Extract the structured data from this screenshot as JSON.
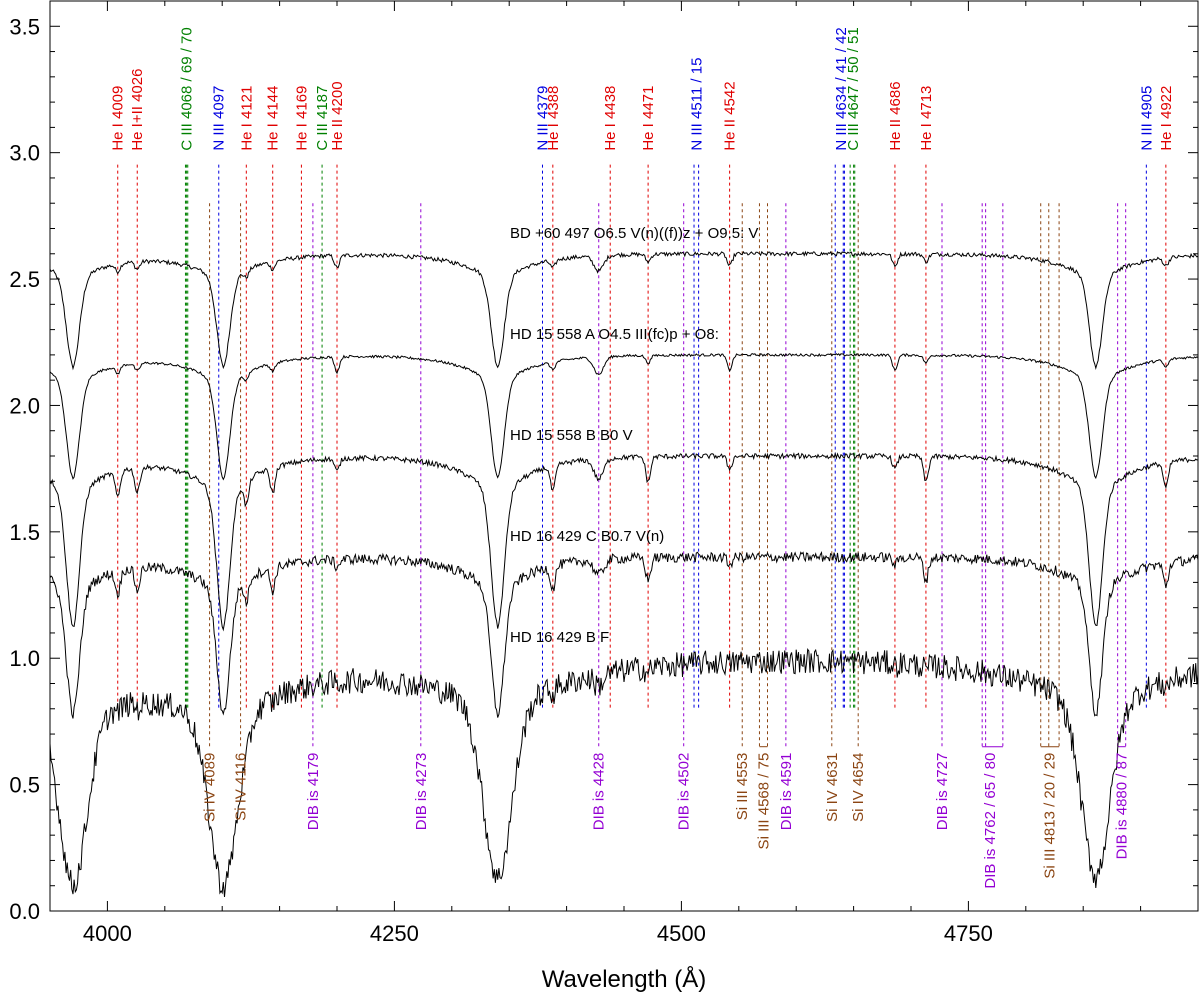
{
  "chart_data": {
    "type": "line",
    "xlabel": "Wavelength (Å)",
    "ylabel": "",
    "xlim": [
      3950,
      4950
    ],
    "ylim": [
      0.0,
      3.6
    ],
    "xticks": [
      4000,
      4250,
      4500,
      4750
    ],
    "yticks": [
      0.0,
      0.5,
      1.0,
      1.5,
      2.0,
      2.5,
      3.0,
      3.5
    ],
    "xtick_labels": [
      "4000",
      "4250",
      "4500",
      "4750"
    ],
    "ytick_labels": [
      "0.0",
      "0.5",
      "1.0",
      "1.5",
      "2.0",
      "2.5",
      "3.0",
      "3.5"
    ],
    "grid": false,
    "series": [
      {
        "name": "BD +60 497   O6.5 V(n)((f))z + O9.5: V",
        "continuum": 2.6,
        "noise": 0.008
      },
      {
        "name": "HD 15 558 A   O4.5 III(fc)p + O8:",
        "continuum": 2.2,
        "noise": 0.005
      },
      {
        "name": "HD 15 558 B   B0 V",
        "continuum": 1.8,
        "noise": 0.01
      },
      {
        "name": "HD 16 429 C   B0.7 V(n)",
        "continuum": 1.4,
        "noise": 0.02
      },
      {
        "name": "HD 16 429 B   F",
        "continuum": 1.0,
        "noise": 0.05
      }
    ],
    "top_lines": [
      {
        "label": "He I 4009",
        "wl": [
          4009
        ],
        "color": "#e00000"
      },
      {
        "label": "He I+II 4026",
        "wl": [
          4026
        ],
        "color": "#e00000"
      },
      {
        "label": "C III 4068 / 69 / 70",
        "wl": [
          4068,
          4069,
          4070
        ],
        "color": "#008000"
      },
      {
        "label": "N III 4097",
        "wl": [
          4097
        ],
        "color": "#0000e0"
      },
      {
        "label": "He I 4121",
        "wl": [
          4121
        ],
        "color": "#e00000"
      },
      {
        "label": "He I 4144",
        "wl": [
          4144
        ],
        "color": "#e00000"
      },
      {
        "label": "He I 4169",
        "wl": [
          4169
        ],
        "color": "#e00000"
      },
      {
        "label": "C III 4187",
        "wl": [
          4187
        ],
        "color": "#008000"
      },
      {
        "label": "He II 4200",
        "wl": [
          4200
        ],
        "color": "#e00000"
      },
      {
        "label": "N III 4379",
        "wl": [
          4379
        ],
        "color": "#0000e0"
      },
      {
        "label": "He I 4388",
        "wl": [
          4388
        ],
        "color": "#e00000"
      },
      {
        "label": "He I 4438",
        "wl": [
          4438
        ],
        "color": "#e00000"
      },
      {
        "label": "He I 4471",
        "wl": [
          4471
        ],
        "color": "#e00000"
      },
      {
        "label": "N III 4511 / 15",
        "wl": [
          4511,
          4515
        ],
        "color": "#0000e0"
      },
      {
        "label": "He II 4542",
        "wl": [
          4542
        ],
        "color": "#e00000"
      },
      {
        "label": "N III 4634 / 41 / 42",
        "wl": [
          4634,
          4641,
          4642
        ],
        "color": "#0000e0"
      },
      {
        "label": "C III 4647 / 50 / 51",
        "wl": [
          4647,
          4650,
          4651
        ],
        "color": "#008000"
      },
      {
        "label": "He II 4686",
        "wl": [
          4686
        ],
        "color": "#e00000"
      },
      {
        "label": "He I 4713",
        "wl": [
          4713
        ],
        "color": "#e00000"
      },
      {
        "label": "N III 4905",
        "wl": [
          4905
        ],
        "color": "#0000e0"
      },
      {
        "label": "He I 4922",
        "wl": [
          4922
        ],
        "color": "#e00000"
      }
    ],
    "bottom_lines": [
      {
        "label": "Si IV 4089",
        "wl": [
          4089
        ],
        "color": "#8b4513"
      },
      {
        "label": "Si IV 4116",
        "wl": [
          4116
        ],
        "color": "#8b4513"
      },
      {
        "label": "DIB is 4179",
        "wl": [
          4179
        ],
        "color": "#9400d3"
      },
      {
        "label": "DIB is 4273",
        "wl": [
          4273
        ],
        "color": "#9400d3"
      },
      {
        "label": "DIB is 4428",
        "wl": [
          4428
        ],
        "color": "#9400d3"
      },
      {
        "label": "DIB is 4502",
        "wl": [
          4502
        ],
        "color": "#9400d3"
      },
      {
        "label": "Si III 4553",
        "wl": [
          4553
        ],
        "color": "#8b4513"
      },
      {
        "label": "Si III 4568 / 75",
        "wl": [
          4568,
          4575
        ],
        "color": "#8b4513"
      },
      {
        "label": "DIB is 4591",
        "wl": [
          4591
        ],
        "color": "#9400d3"
      },
      {
        "label": "Si IV 4631",
        "wl": [
          4631
        ],
        "color": "#8b4513"
      },
      {
        "label": "Si IV 4654",
        "wl": [
          4654
        ],
        "color": "#8b4513"
      },
      {
        "label": "DIB is 4727",
        "wl": [
          4727
        ],
        "color": "#9400d3"
      },
      {
        "label": "DIB is 4762 / 65 / 80",
        "wl": [
          4762,
          4765,
          4780
        ],
        "color": "#9400d3"
      },
      {
        "label": "Si III 4813 / 20 / 29",
        "wl": [
          4813,
          4820,
          4829
        ],
        "color": "#8b4513"
      },
      {
        "label": "DIB is 4880 / 87",
        "wl": [
          4880,
          4887
        ],
        "color": "#9400d3"
      }
    ],
    "absorption_features": [
      {
        "wl": 3970,
        "kind": "balmer"
      },
      {
        "wl": 4101,
        "kind": "balmer"
      },
      {
        "wl": 4340,
        "kind": "balmer"
      },
      {
        "wl": 4861,
        "kind": "balmer"
      },
      {
        "wl": 4009,
        "kind": "helium"
      },
      {
        "wl": 4026,
        "kind": "helium"
      },
      {
        "wl": 4121,
        "kind": "helium"
      },
      {
        "wl": 4144,
        "kind": "helium"
      },
      {
        "wl": 4200,
        "kind": "helium2"
      },
      {
        "wl": 4388,
        "kind": "helium"
      },
      {
        "wl": 4428,
        "kind": "dib"
      },
      {
        "wl": 4471,
        "kind": "helium"
      },
      {
        "wl": 4542,
        "kind": "helium2"
      },
      {
        "wl": 4686,
        "kind": "helium2"
      },
      {
        "wl": 4713,
        "kind": "helium"
      },
      {
        "wl": 4922,
        "kind": "helium"
      }
    ]
  }
}
